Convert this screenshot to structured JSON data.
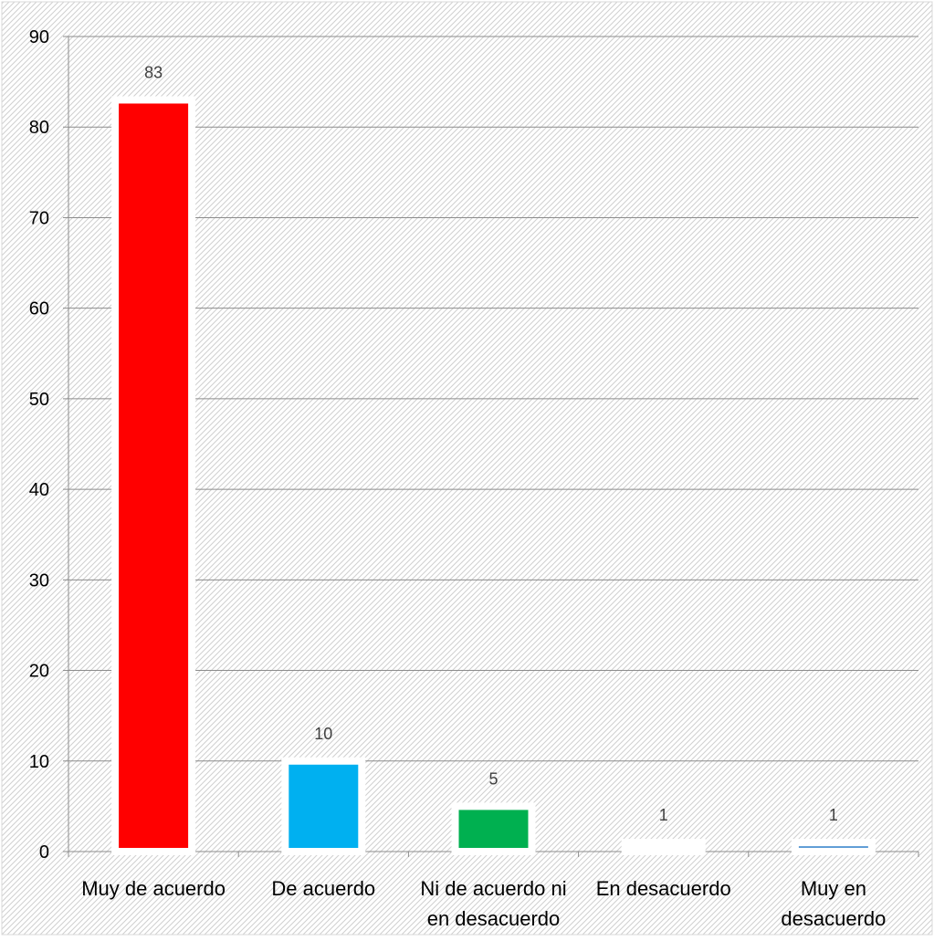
{
  "chart_data": {
    "type": "bar",
    "title": "",
    "xlabel": "",
    "ylabel": "",
    "categories": [
      [
        "Muy de acuerdo"
      ],
      [
        "De acuerdo"
      ],
      [
        "Ni de acuerdo ni",
        "en desacuerdo"
      ],
      [
        "En desacuerdo"
      ],
      [
        "Muy en",
        "desacuerdo"
      ]
    ],
    "values": [
      83,
      10,
      5,
      1,
      1
    ],
    "data_labels": [
      "83",
      "10",
      "5",
      "1",
      "1"
    ],
    "bar_colors": [
      "#ff0000",
      "#00b0f0",
      "#00b050",
      "#ffffff",
      "#5b9bd5"
    ],
    "ylim": [
      0,
      90
    ],
    "yticks": [
      0,
      10,
      20,
      30,
      40,
      50,
      60,
      70,
      80,
      90
    ],
    "grid": true,
    "legend": "none",
    "background": "diagonal-hatch"
  }
}
